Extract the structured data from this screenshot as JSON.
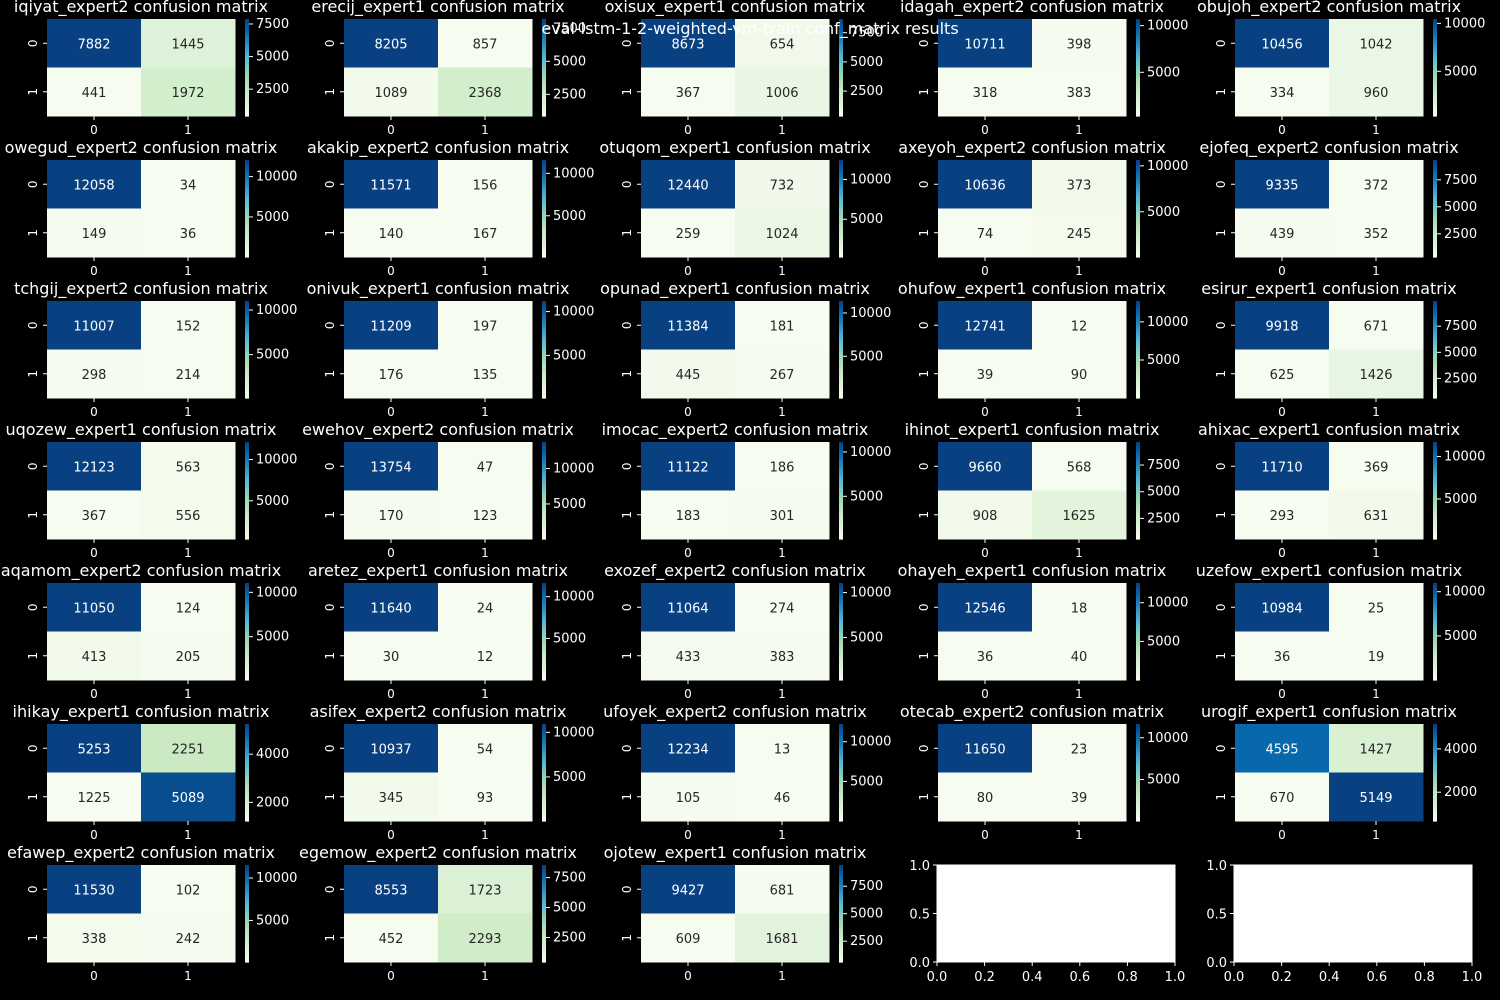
{
  "suptitle": "eval-lstm-1-2-weighted-vm-train conf_matrix results",
  "colors": {
    "background": "#000000",
    "text": "#ffffff",
    "cmap": "GnBu"
  },
  "chart_data": [
    {
      "type": "heatmap",
      "title": "iqiyat_expert2 confusion matrix",
      "xticks": [
        "0",
        "1"
      ],
      "yticks": [
        "0",
        "1"
      ],
      "values": [
        [
          7882,
          1445
        ],
        [
          441,
          1972
        ]
      ],
      "colorbar_ticks": [
        "2500",
        "5000",
        "7500"
      ]
    },
    {
      "type": "heatmap",
      "title": "erecij_expert1 confusion matrix",
      "xticks": [
        "0",
        "1"
      ],
      "yticks": [
        "0",
        "1"
      ],
      "values": [
        [
          8205,
          857
        ],
        [
          1089,
          2368
        ]
      ],
      "colorbar_ticks": [
        "2500",
        "5000",
        "7500"
      ]
    },
    {
      "type": "heatmap",
      "title": "oxisux_expert1 confusion matrix",
      "xticks": [
        "0",
        "1"
      ],
      "yticks": [
        "0",
        "1"
      ],
      "values": [
        [
          8673,
          654
        ],
        [
          367,
          1006
        ]
      ],
      "colorbar_ticks": [
        "2500",
        "5000",
        "7500"
      ]
    },
    {
      "type": "heatmap",
      "title": "idagah_expert2 confusion matrix",
      "xticks": [
        "0",
        "1"
      ],
      "yticks": [
        "0",
        "1"
      ],
      "values": [
        [
          10711,
          398
        ],
        [
          318,
          383
        ]
      ],
      "colorbar_ticks": [
        "5000",
        "10000"
      ]
    },
    {
      "type": "heatmap",
      "title": "obujoh_expert2 confusion matrix",
      "xticks": [
        "0",
        "1"
      ],
      "yticks": [
        "0",
        "1"
      ],
      "values": [
        [
          10456,
          1042
        ],
        [
          334,
          960
        ]
      ],
      "colorbar_ticks": [
        "5000",
        "10000"
      ]
    },
    {
      "type": "heatmap",
      "title": "owegud_expert2 confusion matrix",
      "xticks": [
        "0",
        "1"
      ],
      "yticks": [
        "0",
        "1"
      ],
      "values": [
        [
          12058,
          34
        ],
        [
          149,
          36
        ]
      ],
      "colorbar_ticks": [
        "5000",
        "10000"
      ]
    },
    {
      "type": "heatmap",
      "title": "akakip_expert2 confusion matrix",
      "xticks": [
        "0",
        "1"
      ],
      "yticks": [
        "0",
        "1"
      ],
      "values": [
        [
          11571,
          156
        ],
        [
          140,
          167
        ]
      ],
      "colorbar_ticks": [
        "5000",
        "10000"
      ]
    },
    {
      "type": "heatmap",
      "title": "otuqom_expert1 confusion matrix",
      "xticks": [
        "0",
        "1"
      ],
      "yticks": [
        "0",
        "1"
      ],
      "values": [
        [
          12440,
          732
        ],
        [
          259,
          1024
        ]
      ],
      "colorbar_ticks": [
        "5000",
        "10000"
      ]
    },
    {
      "type": "heatmap",
      "title": "axeyoh_expert2 confusion matrix",
      "xticks": [
        "0",
        "1"
      ],
      "yticks": [
        "0",
        "1"
      ],
      "values": [
        [
          10636,
          373
        ],
        [
          74,
          245
        ]
      ],
      "colorbar_ticks": [
        "5000",
        "10000"
      ]
    },
    {
      "type": "heatmap",
      "title": "ejofeq_expert2 confusion matrix",
      "xticks": [
        "0",
        "1"
      ],
      "yticks": [
        "0",
        "1"
      ],
      "values": [
        [
          9335,
          372
        ],
        [
          439,
          352
        ]
      ],
      "colorbar_ticks": [
        "2500",
        "5000",
        "7500"
      ]
    },
    {
      "type": "heatmap",
      "title": "tchgij_expert2 confusion matrix",
      "xticks": [
        "0",
        "1"
      ],
      "yticks": [
        "0",
        "1"
      ],
      "values": [
        [
          11007,
          152
        ],
        [
          298,
          214
        ]
      ],
      "colorbar_ticks": [
        "5000",
        "10000"
      ]
    },
    {
      "type": "heatmap",
      "title": "onivuk_expert1 confusion matrix",
      "xticks": [
        "0",
        "1"
      ],
      "yticks": [
        "0",
        "1"
      ],
      "values": [
        [
          11209,
          197
        ],
        [
          176,
          135
        ]
      ],
      "colorbar_ticks": [
        "5000",
        "10000"
      ]
    },
    {
      "type": "heatmap",
      "title": "opunad_expert1 confusion matrix",
      "xticks": [
        "0",
        "1"
      ],
      "yticks": [
        "0",
        "1"
      ],
      "values": [
        [
          11384,
          181
        ],
        [
          445,
          267
        ]
      ],
      "colorbar_ticks": [
        "5000",
        "10000"
      ]
    },
    {
      "type": "heatmap",
      "title": "ohufow_expert1 confusion matrix",
      "xticks": [
        "0",
        "1"
      ],
      "yticks": [
        "0",
        "1"
      ],
      "values": [
        [
          12741,
          12
        ],
        [
          39,
          90
        ]
      ],
      "colorbar_ticks": [
        "5000",
        "10000"
      ]
    },
    {
      "type": "heatmap",
      "title": "esirur_expert1 confusion matrix",
      "xticks": [
        "0",
        "1"
      ],
      "yticks": [
        "0",
        "1"
      ],
      "values": [
        [
          9918,
          671
        ],
        [
          625,
          1426
        ]
      ],
      "colorbar_ticks": [
        "2500",
        "5000",
        "7500"
      ]
    },
    {
      "type": "heatmap",
      "title": "uqozew_expert1 confusion matrix",
      "xticks": [
        "0",
        "1"
      ],
      "yticks": [
        "0",
        "1"
      ],
      "values": [
        [
          12123,
          563
        ],
        [
          367,
          556
        ]
      ],
      "colorbar_ticks": [
        "5000",
        "10000"
      ]
    },
    {
      "type": "heatmap",
      "title": "ewehov_expert2 confusion matrix",
      "xticks": [
        "0",
        "1"
      ],
      "yticks": [
        "0",
        "1"
      ],
      "values": [
        [
          13754,
          47
        ],
        [
          170,
          123
        ]
      ],
      "colorbar_ticks": [
        "5000",
        "10000"
      ]
    },
    {
      "type": "heatmap",
      "title": "imocac_expert2 confusion matrix",
      "xticks": [
        "0",
        "1"
      ],
      "yticks": [
        "0",
        "1"
      ],
      "values": [
        [
          11122,
          186
        ],
        [
          183,
          301
        ]
      ],
      "colorbar_ticks": [
        "5000",
        "10000"
      ]
    },
    {
      "type": "heatmap",
      "title": "ihinot_expert1 confusion matrix",
      "xticks": [
        "0",
        "1"
      ],
      "yticks": [
        "0",
        "1"
      ],
      "values": [
        [
          9660,
          568
        ],
        [
          908,
          1625
        ]
      ],
      "colorbar_ticks": [
        "2500",
        "5000",
        "7500"
      ]
    },
    {
      "type": "heatmap",
      "title": "ahixac_expert1 confusion matrix",
      "xticks": [
        "0",
        "1"
      ],
      "yticks": [
        "0",
        "1"
      ],
      "values": [
        [
          11710,
          369
        ],
        [
          293,
          631
        ]
      ],
      "colorbar_ticks": [
        "5000",
        "10000"
      ]
    },
    {
      "type": "heatmap",
      "title": "aqamom_expert2 confusion matrix",
      "xticks": [
        "0",
        "1"
      ],
      "yticks": [
        "0",
        "1"
      ],
      "values": [
        [
          11050,
          124
        ],
        [
          413,
          205
        ]
      ],
      "colorbar_ticks": [
        "5000",
        "10000"
      ]
    },
    {
      "type": "heatmap",
      "title": "aretez_expert1 confusion matrix",
      "xticks": [
        "0",
        "1"
      ],
      "yticks": [
        "0",
        "1"
      ],
      "values": [
        [
          11640,
          24
        ],
        [
          30,
          12
        ]
      ],
      "colorbar_ticks": [
        "5000",
        "10000"
      ]
    },
    {
      "type": "heatmap",
      "title": "exozef_expert2 confusion matrix",
      "xticks": [
        "0",
        "1"
      ],
      "yticks": [
        "0",
        "1"
      ],
      "values": [
        [
          11064,
          274
        ],
        [
          433,
          383
        ]
      ],
      "colorbar_ticks": [
        "5000",
        "10000"
      ]
    },
    {
      "type": "heatmap",
      "title": "ohayeh_expert1 confusion matrix",
      "xticks": [
        "0",
        "1"
      ],
      "yticks": [
        "0",
        "1"
      ],
      "values": [
        [
          12546,
          18
        ],
        [
          36,
          40
        ]
      ],
      "colorbar_ticks": [
        "5000",
        "10000"
      ]
    },
    {
      "type": "heatmap",
      "title": "uzefow_expert1 confusion matrix",
      "xticks": [
        "0",
        "1"
      ],
      "yticks": [
        "0",
        "1"
      ],
      "values": [
        [
          10984,
          25
        ],
        [
          36,
          19
        ]
      ],
      "colorbar_ticks": [
        "5000",
        "10000"
      ]
    },
    {
      "type": "heatmap",
      "title": "ihikay_expert1 confusion matrix",
      "xticks": [
        "0",
        "1"
      ],
      "yticks": [
        "0",
        "1"
      ],
      "values": [
        [
          5253,
          2251
        ],
        [
          1225,
          5089
        ]
      ],
      "colorbar_ticks": [
        "2000",
        "4000"
      ]
    },
    {
      "type": "heatmap",
      "title": "asifex_expert2 confusion matrix",
      "xticks": [
        "0",
        "1"
      ],
      "yticks": [
        "0",
        "1"
      ],
      "values": [
        [
          10937,
          54
        ],
        [
          345,
          93
        ]
      ],
      "colorbar_ticks": [
        "5000",
        "10000"
      ]
    },
    {
      "type": "heatmap",
      "title": "ufoyek_expert2 confusion matrix",
      "xticks": [
        "0",
        "1"
      ],
      "yticks": [
        "0",
        "1"
      ],
      "values": [
        [
          12234,
          13
        ],
        [
          105,
          46
        ]
      ],
      "colorbar_ticks": [
        "5000",
        "10000"
      ]
    },
    {
      "type": "heatmap",
      "title": "otecab_expert2 confusion matrix",
      "xticks": [
        "0",
        "1"
      ],
      "yticks": [
        "0",
        "1"
      ],
      "values": [
        [
          11650,
          23
        ],
        [
          80,
          39
        ]
      ],
      "colorbar_ticks": [
        "5000",
        "10000"
      ]
    },
    {
      "type": "heatmap",
      "title": "urogif_expert1 confusion matrix",
      "xticks": [
        "0",
        "1"
      ],
      "yticks": [
        "0",
        "1"
      ],
      "values": [
        [
          4595,
          1427
        ],
        [
          670,
          5149
        ]
      ],
      "colorbar_ticks": [
        "2000",
        "4000"
      ]
    },
    {
      "type": "heatmap",
      "title": "efawep_expert2 confusion matrix",
      "xticks": [
        "0",
        "1"
      ],
      "yticks": [
        "0",
        "1"
      ],
      "values": [
        [
          11530,
          102
        ],
        [
          338,
          242
        ]
      ],
      "colorbar_ticks": [
        "5000",
        "10000"
      ]
    },
    {
      "type": "heatmap",
      "title": "egemow_expert2 confusion matrix",
      "xticks": [
        "0",
        "1"
      ],
      "yticks": [
        "0",
        "1"
      ],
      "values": [
        [
          8553,
          1723
        ],
        [
          452,
          2293
        ]
      ],
      "colorbar_ticks": [
        "2500",
        "5000",
        "7500"
      ]
    },
    {
      "type": "heatmap",
      "title": "ojotew_expert1 confusion matrix",
      "xticks": [
        "0",
        "1"
      ],
      "yticks": [
        "0",
        "1"
      ],
      "values": [
        [
          9427,
          681
        ],
        [
          609,
          1681
        ]
      ],
      "colorbar_ticks": [
        "2500",
        "5000",
        "7500"
      ]
    },
    {
      "type": "empty",
      "xticks": [
        "0.0",
        "0.2",
        "0.4",
        "0.6",
        "0.8",
        "1.0"
      ],
      "yticks": [
        "0.0",
        "0.5",
        "1.0"
      ],
      "xlim": [
        0,
        1
      ],
      "ylim": [
        0,
        1
      ]
    },
    {
      "type": "empty",
      "xticks": [
        "0.0",
        "0.2",
        "0.4",
        "0.6",
        "0.8",
        "1.0"
      ],
      "yticks": [
        "0.0",
        "0.5",
        "1.0"
      ],
      "xlim": [
        0,
        1
      ],
      "ylim": [
        0,
        1
      ]
    }
  ]
}
